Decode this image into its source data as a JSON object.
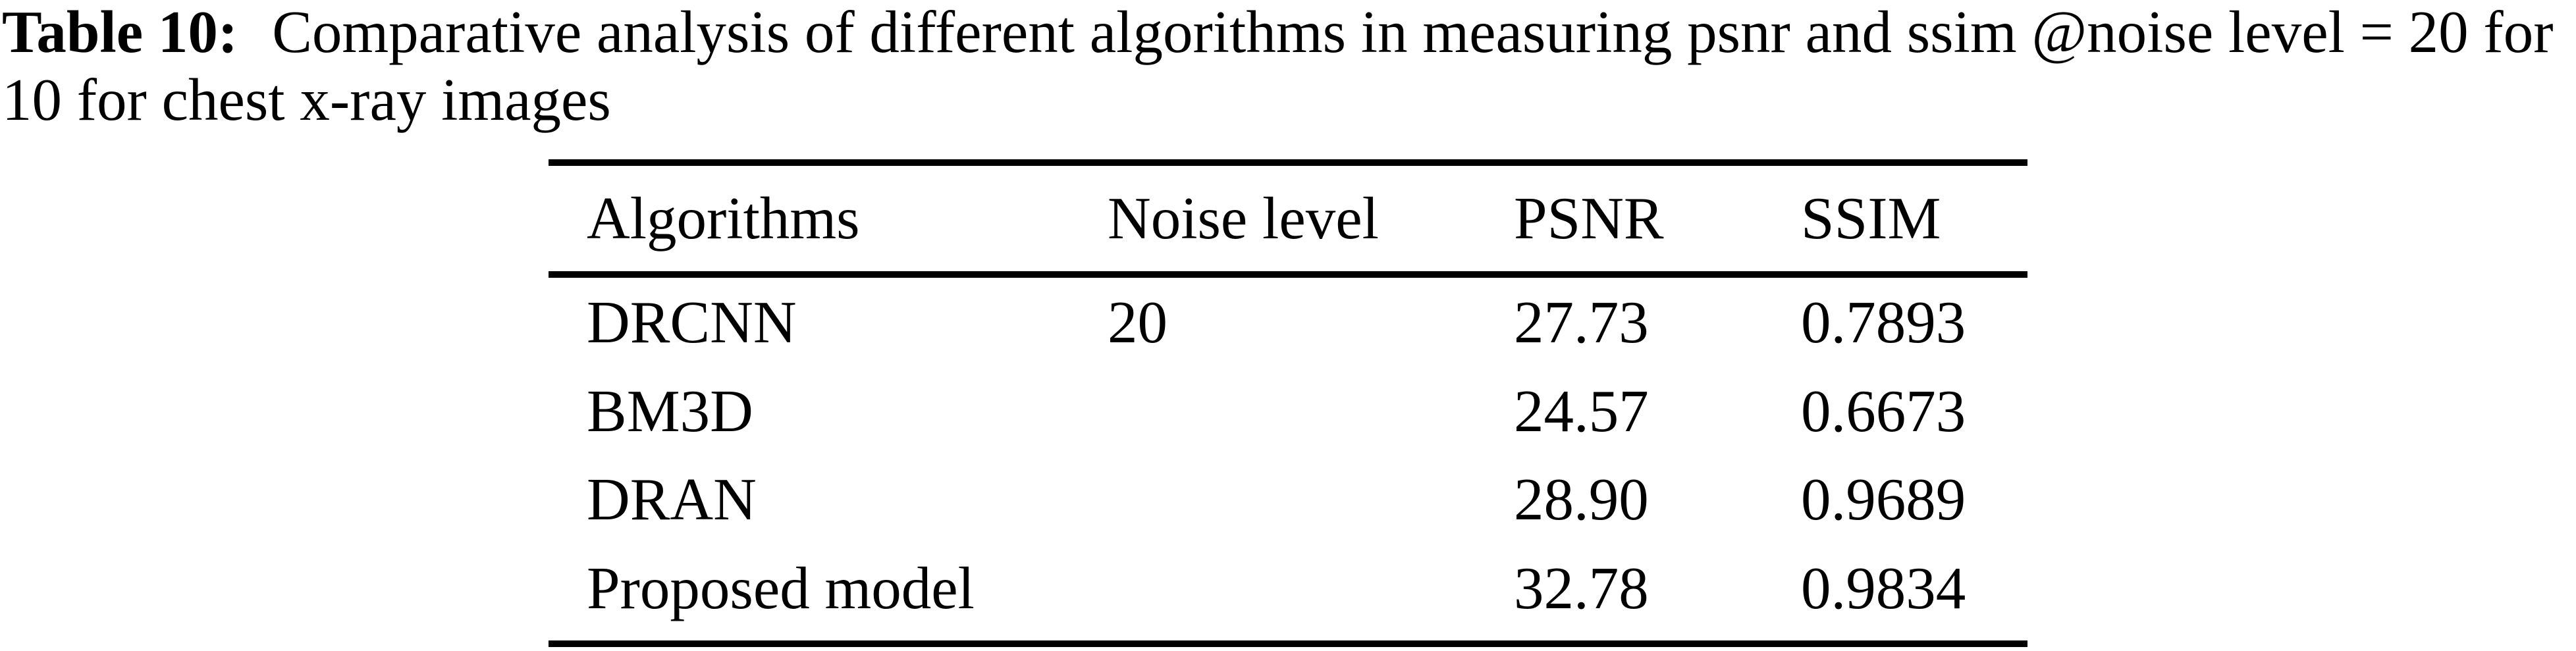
{
  "page": {
    "background_color": "#ffffff",
    "text_color": "#000000"
  },
  "caption": {
    "label": "Table 10:",
    "line1": "Comparative analysis of different algorithms in measuring psnr and ssim @noise level = 20 for",
    "line2": "10 for chest x-ray images"
  },
  "table": {
    "headers": [
      "Algorithms",
      "Noise level",
      "PSNR",
      "SSIM"
    ],
    "rows": [
      {
        "algorithm": "DRCNN",
        "noise_level": "20",
        "psnr": "27.73",
        "ssim": "0.7893"
      },
      {
        "algorithm": "BM3D",
        "noise_level": "",
        "psnr": "24.57",
        "ssim": "0.6673"
      },
      {
        "algorithm": "DRAN",
        "noise_level": "",
        "psnr": "28.90",
        "ssim": "0.9689"
      },
      {
        "algorithm": "Proposed model",
        "noise_level": "",
        "psnr": "32.78",
        "ssim": "0.9834"
      }
    ]
  }
}
